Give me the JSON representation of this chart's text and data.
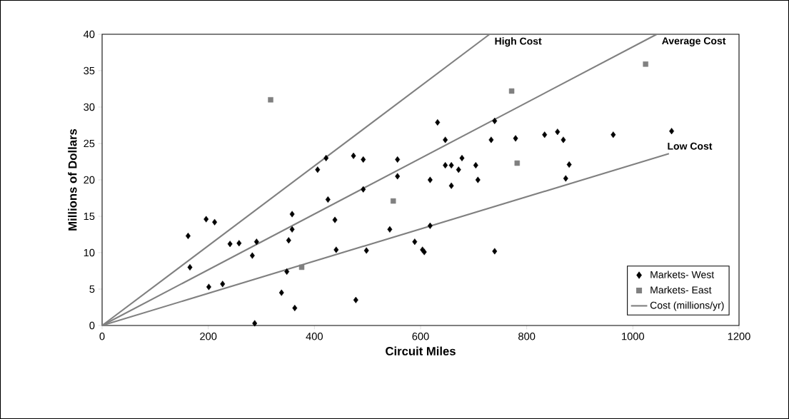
{
  "chart_data": {
    "type": "scatter",
    "xlabel": "Circuit Miles",
    "ylabel": "Millions of Dollars",
    "xlim": [
      0,
      1200
    ],
    "ylim": [
      0,
      40
    ],
    "xticks": [
      0,
      200,
      400,
      600,
      800,
      1000,
      1200
    ],
    "yticks": [
      0,
      5,
      10,
      15,
      20,
      25,
      30,
      35,
      40
    ],
    "grid": false,
    "legend": "bottom right",
    "series": [
      {
        "name": "Markets- West",
        "marker": "diamond",
        "color": "#000000",
        "x": [
          162,
          165.5,
          196,
          212,
          201,
          227,
          241,
          258,
          283,
          291,
          287.5,
          338,
          348,
          363,
          351.5,
          358,
          358,
          406,
          422,
          425.5,
          438.6,
          441,
          473.6,
          492,
          492,
          498,
          478,
          542,
          556.5,
          556.5,
          589,
          603.6,
          607,
          618,
          618,
          632,
          646.6,
          646.6,
          658,
          658,
          671.6,
          678,
          704,
          708,
          733,
          739.6,
          739.6,
          779,
          833.7,
          858,
          869,
          880,
          873.5,
          963,
          1073
        ],
        "values": [
          12.3,
          8.0,
          14.6,
          14.2,
          5.3,
          5.7,
          11.2,
          11.3,
          9.6,
          11.5,
          0.3,
          4.5,
          7.4,
          2.4,
          11.7,
          13.2,
          15.3,
          21.4,
          23.0,
          17.3,
          14.5,
          10.4,
          23.3,
          22.8,
          18.7,
          10.3,
          3.5,
          13.2,
          22.8,
          20.5,
          11.5,
          10.4,
          10.1,
          13.7,
          20.0,
          27.9,
          25.5,
          22.0,
          22.0,
          19.2,
          21.4,
          23.0,
          22.0,
          20.0,
          25.5,
          28.1,
          10.2,
          25.7,
          26.2,
          26.6,
          25.5,
          22.1,
          20.2,
          26.2,
          26.7
        ]
      },
      {
        "name": "Markets- East",
        "marker": "square",
        "color": "#808080",
        "x": [
          317.5,
          376,
          548.5,
          771.6,
          782,
          1024
        ],
        "values": [
          31.0,
          8.0,
          17.1,
          32.2,
          22.3,
          35.9
        ]
      },
      {
        "name": "Cost (millions/yr)",
        "type": "line",
        "color": "#808080",
        "x": [
          0,
          730
        ],
        "values": [
          0,
          40
        ]
      },
      {
        "type": "line",
        "color": "#808080",
        "x": [
          0,
          1045
        ],
        "values": [
          0,
          40
        ]
      },
      {
        "type": "line",
        "color": "#808080",
        "x": [
          0,
          1068
        ],
        "values": [
          0,
          23.6
        ]
      }
    ],
    "annotations": [
      "High Cost",
      "Average Cost",
      "Low Cost"
    ]
  }
}
